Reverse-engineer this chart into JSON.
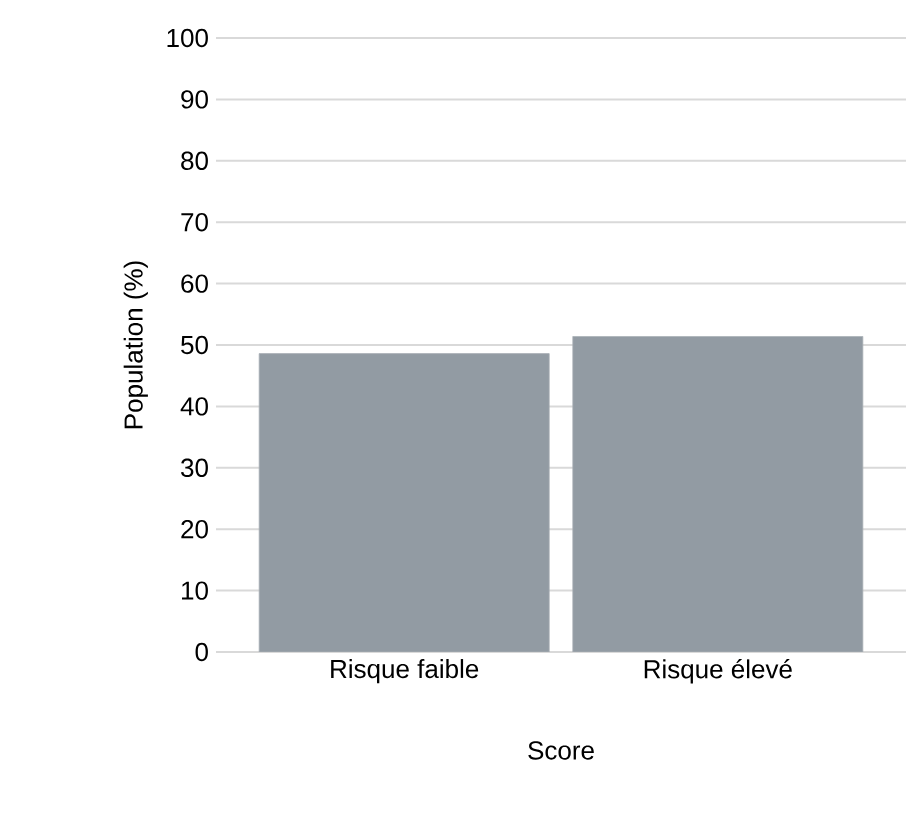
{
  "chart_data": {
    "type": "bar",
    "xlabel": "Score",
    "ylabel": "Population (%)",
    "categories": [
      "Risque faible",
      "Risque élevé"
    ],
    "values": [
      48.6,
      51.4
    ],
    "color": "#929ba3",
    "ylim": [
      0,
      100
    ],
    "yticks": [
      0,
      10,
      20,
      30,
      40,
      50,
      60,
      70,
      80,
      90,
      100
    ],
    "grid": "y"
  }
}
